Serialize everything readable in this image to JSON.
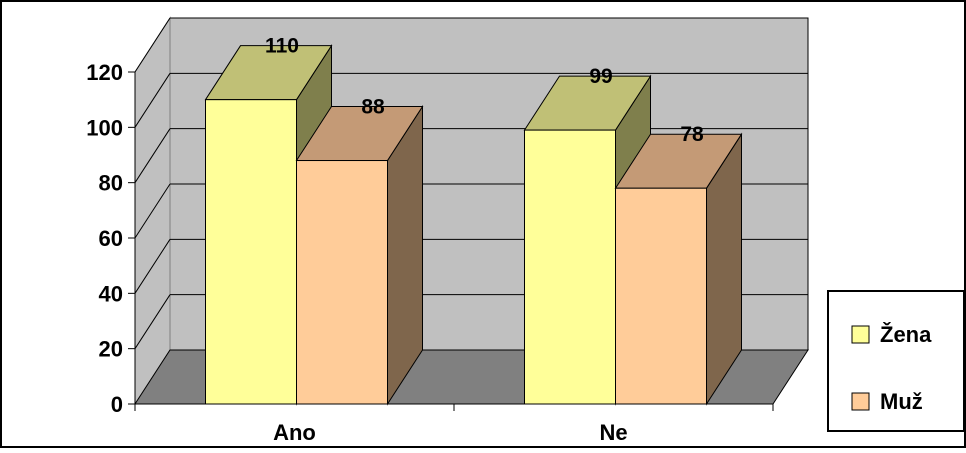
{
  "chart_data": {
    "type": "bar",
    "categories": [
      "Ano",
      "Ne"
    ],
    "series": [
      {
        "name": "Žena",
        "values": [
          110,
          99
        ]
      },
      {
        "name": "Muž",
        "values": [
          88,
          78
        ]
      }
    ],
    "title": "",
    "xlabel": "",
    "ylabel": "",
    "ylim": [
      0,
      120
    ],
    "y_ticks": [
      "0",
      "20",
      "40",
      "60",
      "80",
      "100",
      "120"
    ],
    "grid": true,
    "legend_position": "right",
    "three_d": true,
    "colors": {
      "Žena": {
        "front": "#ffff99",
        "top": "#c0c076",
        "side": "#7f7f4c"
      },
      "Muž": {
        "front": "#ffcc99",
        "top": "#c49a76",
        "side": "#7f664c"
      },
      "back_wall": "#c0c0c0",
      "floor": "#808080",
      "gridline": "#000000"
    }
  }
}
